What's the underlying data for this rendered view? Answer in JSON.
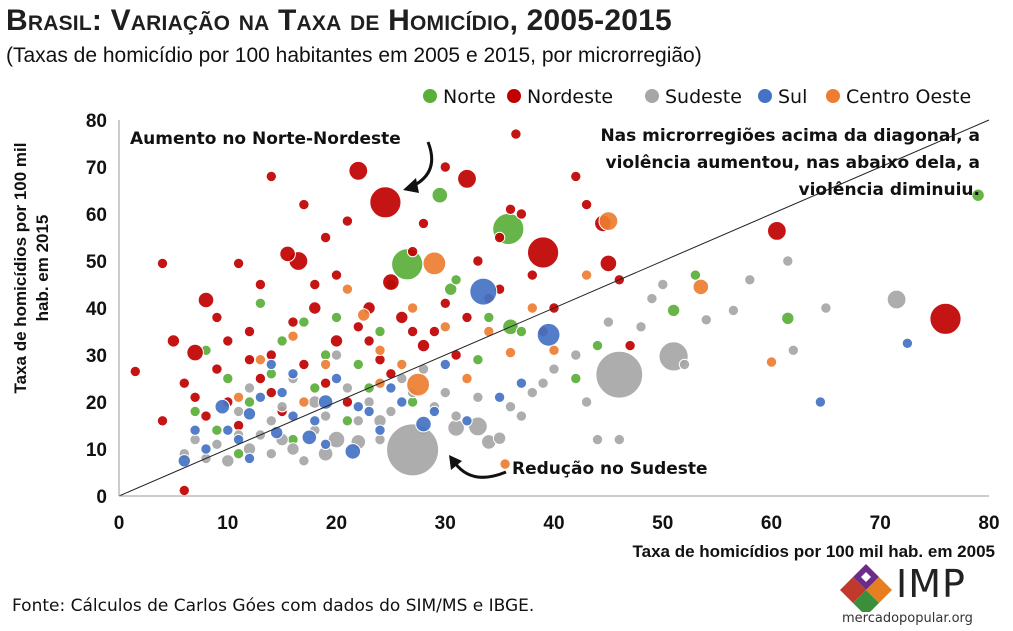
{
  "header": {
    "title": "Brasil: Variação na Taxa de Homicídio, 2005-2015",
    "subtitle": "(Taxas  de homicídio por 100 habitantes em 2005 e 2015, por microrregião)"
  },
  "footer": {
    "source": "Fonte: Cálculos de Carlos Góes com dados do SIM/MS e IBGE.",
    "logo_text": "IMP",
    "logo_url": "mercadopopular.org"
  },
  "colors": {
    "Norte": "#5aae3a",
    "Nordeste": "#c00000",
    "Sudeste": "#a6a6a6",
    "Sul": "#4472c4",
    "Centro Oeste": "#ed7d31"
  },
  "chart_data": {
    "type": "scatter",
    "title": "Brasil: Variação na Taxa de Homicídio, 2005-2015",
    "xlabel": "Taxa de homicídios por 100 mil hab. em 2005",
    "ylabel": "Taxa de homicídios por 100 mil hab. em 2015",
    "xlim": [
      0,
      80
    ],
    "ylim": [
      0,
      80
    ],
    "xticks": [
      0,
      10,
      20,
      30,
      40,
      50,
      60,
      70,
      80
    ],
    "yticks": [
      0,
      10,
      20,
      30,
      40,
      50,
      60,
      70,
      80
    ],
    "grid": false,
    "legend_position": "top",
    "diagonal": true,
    "annotations": [
      {
        "text": "Aumento no Norte-Nordeste",
        "arrow_to": [
          26,
          63
        ]
      },
      {
        "text": "Redução no Sudeste",
        "arrow_to": [
          30,
          9
        ]
      },
      {
        "text": "Nas microrregiões acima da diagonal, a violência aumentou, nas abaixo dela, a violência diminuiu."
      }
    ],
    "series": [
      {
        "name": "Norte",
        "color": "#5aae3a",
        "points": [
          [
            26.5,
            49.3,
            3
          ],
          [
            35.8,
            56.8,
            3
          ],
          [
            29.5,
            64,
            1.5
          ],
          [
            79,
            64,
            1.2
          ],
          [
            61.5,
            37.8,
            1.2
          ],
          [
            51,
            39.5,
            1.2
          ],
          [
            30.5,
            44,
            1.2
          ],
          [
            36,
            36,
            1.5
          ],
          [
            8,
            31,
            1
          ],
          [
            15,
            33,
            1
          ],
          [
            20,
            38,
            1
          ],
          [
            24,
            35,
            1
          ],
          [
            31,
            46,
            1
          ],
          [
            18,
            23,
            1
          ],
          [
            22,
            28,
            1
          ],
          [
            12,
            20,
            1
          ],
          [
            9,
            14,
            1
          ],
          [
            16,
            12,
            1
          ],
          [
            21,
            16,
            1
          ],
          [
            27,
            20,
            1
          ],
          [
            33,
            29,
            1
          ],
          [
            37,
            35,
            1
          ],
          [
            44,
            32,
            1
          ],
          [
            13,
            41,
            1
          ],
          [
            19,
            30,
            1
          ],
          [
            23,
            23,
            1
          ],
          [
            10,
            25,
            1
          ],
          [
            7,
            18,
            1
          ],
          [
            25,
            45,
            1
          ],
          [
            34,
            38,
            1
          ],
          [
            53,
            47,
            1
          ],
          [
            42,
            25,
            1
          ],
          [
            28,
            14,
            1
          ],
          [
            17,
            37,
            1
          ],
          [
            14,
            26,
            1
          ],
          [
            11,
            9,
            1
          ]
        ]
      },
      {
        "name": "Nordeste",
        "color": "#c00000",
        "points": [
          [
            24.5,
            62.5,
            3
          ],
          [
            39,
            51.8,
            3
          ],
          [
            76,
            37.7,
            3
          ],
          [
            22,
            69.2,
            1.8
          ],
          [
            32,
            67.5,
            1.8
          ],
          [
            16.5,
            50,
            1.8
          ],
          [
            60.5,
            56.4,
            1.8
          ],
          [
            45,
            49.5,
            1.6
          ],
          [
            44.5,
            58,
            1.6
          ],
          [
            7,
            30.5,
            1.6
          ],
          [
            25,
            45.5,
            1.6
          ],
          [
            15.5,
            51.5,
            1.5
          ],
          [
            8,
            41.7,
            1.5
          ],
          [
            36.5,
            77,
            1
          ],
          [
            30,
            70,
            1
          ],
          [
            42,
            68,
            1
          ],
          [
            14,
            68,
            1
          ],
          [
            21,
            58.5,
            1
          ],
          [
            37,
            60,
            1
          ],
          [
            11,
            49.5,
            1
          ],
          [
            4,
            49.5,
            1
          ],
          [
            6,
            1.2,
            1
          ],
          [
            1.5,
            26.5,
            1
          ],
          [
            28,
            32,
            1.2
          ],
          [
            20,
            33,
            1.2
          ],
          [
            23,
            40,
            1.2
          ],
          [
            18,
            45,
            1
          ],
          [
            12,
            35,
            1
          ],
          [
            9,
            27,
            1
          ],
          [
            14,
            22,
            1
          ],
          [
            17,
            28,
            1
          ],
          [
            26,
            38,
            1.2
          ],
          [
            30,
            41,
            1
          ],
          [
            33,
            50,
            1
          ],
          [
            35,
            55,
            1
          ],
          [
            38,
            47,
            1
          ],
          [
            27,
            52,
            1
          ],
          [
            19,
            55,
            1
          ],
          [
            13,
            45,
            1
          ],
          [
            10,
            33,
            1
          ],
          [
            5,
            33,
            1.2
          ],
          [
            6,
            24,
            1
          ],
          [
            8,
            17,
            1
          ],
          [
            11,
            15,
            1
          ],
          [
            15,
            18,
            1
          ],
          [
            21,
            20,
            1
          ],
          [
            24,
            29,
            1
          ],
          [
            29,
            35,
            1
          ],
          [
            32,
            38,
            1
          ],
          [
            34,
            42,
            1
          ],
          [
            40,
            40,
            1
          ],
          [
            46,
            46,
            1
          ],
          [
            43,
            62,
            1
          ],
          [
            47,
            32,
            1
          ],
          [
            16,
            37,
            1
          ],
          [
            22,
            36,
            1
          ],
          [
            18,
            40,
            1.2
          ],
          [
            7,
            21,
            1
          ],
          [
            12,
            29,
            1
          ],
          [
            25,
            26,
            1
          ],
          [
            31,
            30,
            1
          ],
          [
            20,
            47,
            1
          ],
          [
            17,
            62,
            1
          ],
          [
            36,
            61,
            1
          ],
          [
            28,
            58,
            1
          ],
          [
            9,
            38,
            1
          ],
          [
            14,
            30,
            1
          ],
          [
            23,
            33,
            1
          ],
          [
            27,
            35,
            1
          ],
          [
            35,
            44,
            1
          ],
          [
            39,
            35,
            1
          ],
          [
            19,
            24,
            1
          ],
          [
            10,
            20,
            1
          ],
          [
            4,
            16,
            1
          ],
          [
            13,
            25,
            1
          ]
        ]
      },
      {
        "name": "Sudeste",
        "color": "#a6a6a6",
        "points": [
          [
            27,
            9.8,
            5
          ],
          [
            46,
            25.8,
            4.5
          ],
          [
            51,
            29.7,
            2.8
          ],
          [
            71.5,
            41.8,
            1.8
          ],
          [
            33,
            14.8,
            1.8
          ],
          [
            31,
            14.5,
            1.6
          ],
          [
            34,
            11.5,
            1.4
          ],
          [
            35,
            12.3,
            1.2
          ],
          [
            20,
            12,
            1.6
          ],
          [
            19,
            9,
            1.4
          ],
          [
            22,
            11.5,
            1.4
          ],
          [
            15,
            12,
            1.2
          ],
          [
            16,
            10,
            1.2
          ],
          [
            12,
            10,
            1.2
          ],
          [
            10,
            7.5,
            1.2
          ],
          [
            24,
            16,
            1.2
          ],
          [
            17,
            7.5,
            1
          ],
          [
            18,
            20,
            1.2
          ],
          [
            21,
            23,
            1
          ],
          [
            23,
            20,
            1
          ],
          [
            25,
            18,
            1
          ],
          [
            14,
            16,
            1
          ],
          [
            13,
            13,
            1
          ],
          [
            11,
            18,
            1
          ],
          [
            9,
            11,
            1
          ],
          [
            8,
            8,
            1
          ],
          [
            7,
            12,
            1
          ],
          [
            6,
            9,
            1
          ],
          [
            29,
            19,
            1
          ],
          [
            30,
            22,
            1
          ],
          [
            26,
            25,
            1
          ],
          [
            37,
            17,
            1
          ],
          [
            38,
            22,
            1
          ],
          [
            40,
            27,
            1
          ],
          [
            42,
            30,
            1
          ],
          [
            48,
            36,
            1
          ],
          [
            49,
            42,
            1
          ],
          [
            56.5,
            39.5,
            1
          ],
          [
            62,
            31,
            1
          ],
          [
            54,
            37.5,
            1
          ],
          [
            46,
            12,
            1
          ],
          [
            44,
            12,
            1
          ],
          [
            28,
            27,
            1
          ],
          [
            20,
            30,
            1
          ],
          [
            16,
            25,
            1
          ],
          [
            12,
            23,
            1
          ],
          [
            22,
            16,
            1
          ],
          [
            33,
            21,
            1
          ],
          [
            36,
            19,
            1
          ],
          [
            39,
            24,
            1
          ],
          [
            43,
            20,
            1
          ],
          [
            52,
            28,
            1
          ],
          [
            18,
            14,
            1
          ],
          [
            15,
            19,
            1
          ],
          [
            27,
            22,
            1
          ],
          [
            31,
            17,
            1
          ],
          [
            24,
            12,
            1
          ],
          [
            19,
            17,
            1
          ],
          [
            14,
            9,
            1
          ],
          [
            11,
            13,
            1
          ],
          [
            61.5,
            50,
            1
          ],
          [
            65,
            40,
            1
          ],
          [
            50,
            45,
            1
          ],
          [
            58,
            46,
            1
          ],
          [
            45,
            37,
            1
          ]
        ]
      },
      {
        "name": "Sul",
        "color": "#4472c4",
        "points": [
          [
            33.5,
            43.5,
            2.6
          ],
          [
            39.5,
            34.3,
            2.2
          ],
          [
            28,
            15.3,
            1.5
          ],
          [
            21.5,
            9.5,
            1.5
          ],
          [
            17.5,
            12.5,
            1.4
          ],
          [
            19,
            20,
            1.4
          ],
          [
            9.5,
            19,
            1.4
          ],
          [
            12,
            17.5,
            1.2
          ],
          [
            14.5,
            13.5,
            1.2
          ],
          [
            16,
            17,
            1
          ],
          [
            24,
            14,
            1
          ],
          [
            26,
            20,
            1
          ],
          [
            18,
            16,
            1
          ],
          [
            13,
            21,
            1
          ],
          [
            10,
            14,
            1
          ],
          [
            8,
            10,
            1
          ],
          [
            6,
            7.5,
            1.2
          ],
          [
            11,
            12,
            1
          ],
          [
            15,
            22,
            1
          ],
          [
            20,
            25,
            1
          ],
          [
            22,
            19,
            1
          ],
          [
            25,
            23,
            1
          ],
          [
            30,
            28,
            1
          ],
          [
            32,
            16,
            1
          ],
          [
            37,
            24,
            1
          ],
          [
            64.5,
            20,
            1
          ],
          [
            72.5,
            32.5,
            1
          ],
          [
            7,
            14,
            1
          ],
          [
            12,
            8,
            1
          ],
          [
            16,
            26,
            1
          ],
          [
            19,
            11,
            1
          ],
          [
            23,
            18,
            1
          ],
          [
            14,
            28,
            1
          ],
          [
            29,
            18,
            1
          ],
          [
            35,
            21,
            1
          ]
        ]
      },
      {
        "name": "Centro Oeste",
        "color": "#ed7d31",
        "points": [
          [
            29,
            49.5,
            2.2
          ],
          [
            27.5,
            23.7,
            2.2
          ],
          [
            45,
            58.5,
            1.8
          ],
          [
            53.5,
            44.5,
            1.5
          ],
          [
            22.5,
            38.5,
            1.2
          ],
          [
            32,
            25,
            1
          ],
          [
            36,
            30.5,
            1
          ],
          [
            34,
            35,
            1
          ],
          [
            24,
            31,
            1
          ],
          [
            19,
            28,
            1
          ],
          [
            16,
            34,
            1
          ],
          [
            13,
            29,
            1
          ],
          [
            40,
            31,
            1
          ],
          [
            60,
            28.5,
            1
          ],
          [
            35.5,
            6.8,
            1
          ],
          [
            26,
            28,
            1
          ],
          [
            30,
            36,
            1
          ],
          [
            21,
            44,
            1
          ],
          [
            11,
            21,
            1
          ],
          [
            17,
            20,
            1
          ],
          [
            38,
            40,
            1
          ],
          [
            43,
            47,
            1
          ],
          [
            27,
            40,
            1
          ],
          [
            24,
            24,
            1
          ]
        ]
      }
    ]
  }
}
